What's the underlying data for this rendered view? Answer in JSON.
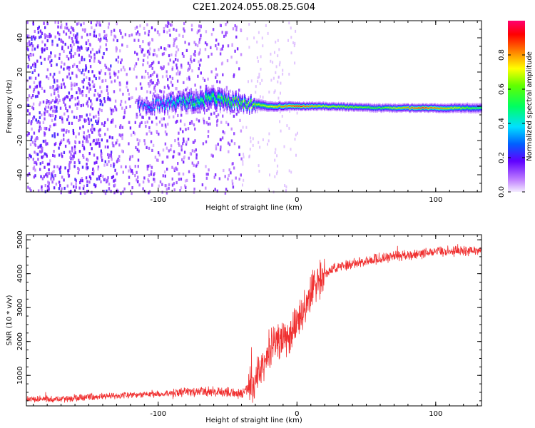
{
  "title": "C2E1.2024.055.08.25.G04",
  "chart_data": [
    {
      "type": "heatmap",
      "xlabel": "Height of straight line (km)",
      "ylabel": "Frequency (Hz)",
      "xlim": [
        -195,
        133
      ],
      "ylim": [
        -50,
        50
      ],
      "x_ticks": [
        -100,
        0,
        100
      ],
      "y_ticks": [
        -40,
        -20,
        0,
        20,
        40
      ],
      "grid": false,
      "colorbar": {
        "label": "Normalized spectral amplitude",
        "range": [
          0,
          1
        ],
        "ticks": [
          0.0,
          0.2,
          0.4,
          0.6,
          0.8
        ]
      },
      "signal_band": [
        {
          "x": -110,
          "freq": 0,
          "width": 6,
          "amplitude": 0.25
        },
        {
          "x": -80,
          "freq": 3,
          "width": 10,
          "amplitude": 0.45
        },
        {
          "x": -60,
          "freq": 4,
          "width": 12,
          "amplitude": 0.5
        },
        {
          "x": -40,
          "freq": 2,
          "width": 8,
          "amplitude": 0.6
        },
        {
          "x": -20,
          "freq": 0,
          "width": 6,
          "amplitude": 0.7
        },
        {
          "x": 0,
          "freq": 0,
          "width": 5,
          "amplitude": 0.95
        },
        {
          "x": 20,
          "freq": 0,
          "width": 5,
          "amplitude": 0.7
        },
        {
          "x": 60,
          "freq": -1,
          "width": 5,
          "amplitude": 0.6
        },
        {
          "x": 90,
          "freq": -1,
          "width": 5,
          "amplitude": 0.95
        },
        {
          "x": 130,
          "freq": -1,
          "width": 6,
          "amplitude": 0.55
        }
      ]
    },
    {
      "type": "line",
      "xlabel": "Height of straight line (km)",
      "ylabel": "SNR (10 * v/v)",
      "xlim": [
        -195,
        133
      ],
      "ylim": [
        100,
        5150
      ],
      "x_ticks": [
        -100,
        0,
        100
      ],
      "y_ticks": [
        1000,
        2000,
        3000,
        4000,
        5000
      ],
      "series": [
        {
          "color": "#f03030",
          "x": [
            -195,
            -160,
            -140,
            -120,
            -100,
            -80,
            -60,
            -40,
            -35,
            -30,
            -25,
            -20,
            -15,
            -10,
            -5,
            0,
            5,
            10,
            15,
            20,
            25,
            30,
            40,
            60,
            80,
            100,
            133
          ],
          "values": [
            300,
            320,
            380,
            420,
            450,
            500,
            520,
            450,
            600,
            900,
            1300,
            1800,
            2000,
            2100,
            2200,
            2500,
            2900,
            3400,
            3800,
            4000,
            4100,
            4200,
            4300,
            4450,
            4550,
            4650,
            4700
          ]
        }
      ]
    }
  ]
}
